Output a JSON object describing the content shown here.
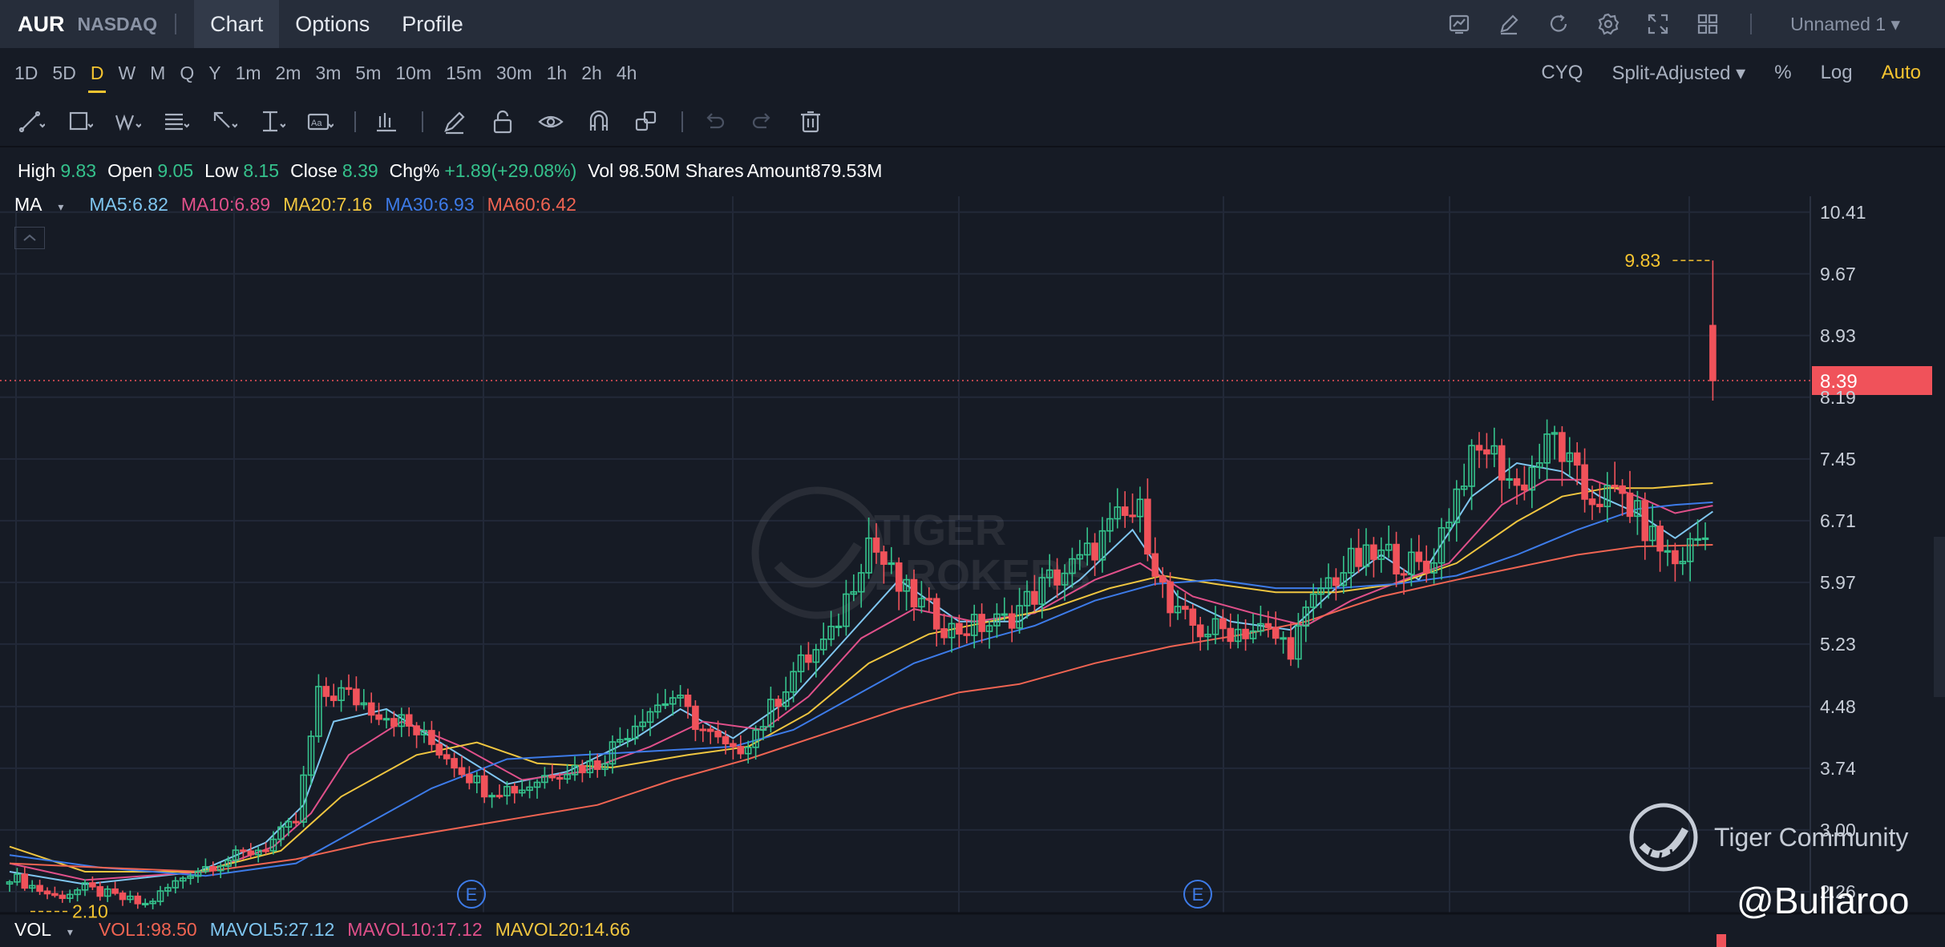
{
  "header": {
    "ticker": "AUR",
    "exchange": "NASDAQ",
    "tabs": [
      {
        "label": "Chart",
        "active": true
      },
      {
        "label": "Options"
      },
      {
        "label": "Profile"
      }
    ],
    "icons": [
      "chart-settings-icon",
      "pencil-icon",
      "refresh-icon",
      "gear-icon",
      "fullscreen-icon",
      "layout-grid-icon"
    ],
    "layout_name": "Unnamed 1"
  },
  "intervals": {
    "items": [
      "1D",
      "5D",
      "D",
      "W",
      "M",
      "Q",
      "Y",
      "1m",
      "2m",
      "3m",
      "5m",
      "10m",
      "15m",
      "30m",
      "1h",
      "2h",
      "4h"
    ],
    "active": "D"
  },
  "options": {
    "cyq": "CYQ",
    "adjust": "Split-Adjusted",
    "pct": "%",
    "log": "Log",
    "auto": "Auto"
  },
  "drawing_tools": [
    "trend-line-icon",
    "rectangle-icon",
    "wave-icon",
    "fib-icon",
    "arrow-icon",
    "measure-icon",
    "text-icon",
    "bar-pattern-icon",
    "brush-icon",
    "lock-icon",
    "eye-icon",
    "magnet-icon",
    "clone-icon",
    "undo-icon",
    "redo-icon",
    "trash-icon"
  ],
  "ohlc": {
    "high_label": "High",
    "high": "9.83",
    "open_label": "Open",
    "open": "9.05",
    "low_label": "Low",
    "low": "8.15",
    "close_label": "Close",
    "close": "8.39",
    "chg_label": "Chg%",
    "chg": "+1.89(+29.08%)",
    "vol": "Vol 98.50M Shares",
    "amount": "Amount879.53M"
  },
  "ma_legend": {
    "label": "MA",
    "items": [
      {
        "text": "MA5:6.82",
        "color": "#7fc6f0"
      },
      {
        "text": "MA10:6.89",
        "color": "#e0508a"
      },
      {
        "text": "MA20:7.16",
        "color": "#f0c640"
      },
      {
        "text": "MA30:6.93",
        "color": "#3d7be8"
      },
      {
        "text": "MA60:6.42",
        "color": "#f06452"
      }
    ]
  },
  "volume_legend": {
    "label": "VOL",
    "items": [
      {
        "text": "VOL1:98.50",
        "color": "#f06452"
      },
      {
        "text": "MAVOL5:27.12",
        "color": "#7fc6f0"
      },
      {
        "text": "MAVOL10:17.12",
        "color": "#e0508a"
      },
      {
        "text": "MAVOL20:14.66",
        "color": "#f0c640"
      }
    ]
  },
  "chart_data": {
    "type": "candlestick",
    "ylim": [
      2.0,
      10.6
    ],
    "yticks": [
      "10.41",
      "9.67",
      "8.93",
      "8.19",
      "7.45",
      "6.71",
      "5.97",
      "5.23",
      "4.48",
      "3.74",
      "3.00",
      "2.26"
    ],
    "last_price": "8.39",
    "high_marker": "9.83",
    "low_marker": "2.10",
    "earnings_markers": [
      "E",
      "E"
    ],
    "colors": {
      "up": "#35c28c",
      "down": "#f0525a"
    },
    "anchors": [
      [
        0,
        2.45
      ],
      [
        6,
        2.2
      ],
      [
        10,
        2.3
      ],
      [
        18,
        2.1
      ],
      [
        24,
        2.5
      ],
      [
        34,
        2.8
      ],
      [
        38,
        3.1
      ],
      [
        41,
        4.6
      ],
      [
        44,
        4.65
      ],
      [
        52,
        4.3
      ],
      [
        58,
        3.9
      ],
      [
        63,
        3.5
      ],
      [
        68,
        3.5
      ],
      [
        72,
        3.7
      ],
      [
        78,
        3.8
      ],
      [
        84,
        4.4
      ],
      [
        88,
        4.6
      ],
      [
        92,
        4.2
      ],
      [
        96,
        3.9
      ],
      [
        100,
        4.3
      ],
      [
        104,
        4.9
      ],
      [
        109,
        5.3
      ],
      [
        114,
        6.5
      ],
      [
        118,
        5.9
      ],
      [
        125,
        5.4
      ],
      [
        132,
        5.5
      ],
      [
        138,
        6.0
      ],
      [
        142,
        6.2
      ],
      [
        147,
        6.7
      ],
      [
        150,
        6.8
      ],
      [
        154,
        5.6
      ],
      [
        158,
        5.4
      ],
      [
        166,
        5.4
      ],
      [
        170,
        5.2
      ],
      [
        174,
        5.9
      ],
      [
        178,
        6.2
      ],
      [
        183,
        6.3
      ],
      [
        188,
        6.1
      ],
      [
        193,
        7.3
      ],
      [
        196,
        7.6
      ],
      [
        200,
        7.1
      ],
      [
        205,
        7.7
      ],
      [
        209,
        7.0
      ],
      [
        214,
        7.0
      ],
      [
        218,
        6.5
      ],
      [
        221,
        6.2
      ],
      [
        224,
        6.5
      ],
      [
        225,
        6.78
      ],
      [
        226,
        8.39
      ]
    ],
    "ma": {
      "ma5": [
        [
          0,
          2.5
        ],
        [
          10,
          2.35
        ],
        [
          25,
          2.5
        ],
        [
          34,
          2.85
        ],
        [
          39,
          3.3
        ],
        [
          43,
          4.3
        ],
        [
          50,
          4.45
        ],
        [
          58,
          4.0
        ],
        [
          66,
          3.55
        ],
        [
          74,
          3.7
        ],
        [
          83,
          4.1
        ],
        [
          89,
          4.45
        ],
        [
          96,
          4.1
        ],
        [
          104,
          4.6
        ],
        [
          110,
          5.2
        ],
        [
          118,
          6.0
        ],
        [
          126,
          5.5
        ],
        [
          134,
          5.5
        ],
        [
          142,
          6.0
        ],
        [
          149,
          6.6
        ],
        [
          155,
          5.8
        ],
        [
          162,
          5.5
        ],
        [
          170,
          5.4
        ],
        [
          176,
          5.9
        ],
        [
          182,
          6.3
        ],
        [
          187,
          6.0
        ],
        [
          194,
          7.0
        ],
        [
          200,
          7.4
        ],
        [
          206,
          7.3
        ],
        [
          211,
          7.0
        ],
        [
          216,
          6.8
        ],
        [
          221,
          6.5
        ],
        [
          226,
          6.82
        ]
      ],
      "ma10": [
        [
          0,
          2.6
        ],
        [
          10,
          2.4
        ],
        [
          26,
          2.5
        ],
        [
          35,
          2.8
        ],
        [
          40,
          3.2
        ],
        [
          45,
          3.9
        ],
        [
          52,
          4.3
        ],
        [
          60,
          4.0
        ],
        [
          68,
          3.6
        ],
        [
          76,
          3.7
        ],
        [
          85,
          4.0
        ],
        [
          92,
          4.3
        ],
        [
          100,
          4.2
        ],
        [
          106,
          4.6
        ],
        [
          113,
          5.3
        ],
        [
          120,
          5.65
        ],
        [
          128,
          5.5
        ],
        [
          136,
          5.6
        ],
        [
          144,
          6.0
        ],
        [
          150,
          6.2
        ],
        [
          157,
          5.8
        ],
        [
          165,
          5.6
        ],
        [
          172,
          5.45
        ],
        [
          178,
          5.75
        ],
        [
          185,
          6.0
        ],
        [
          191,
          6.2
        ],
        [
          198,
          6.9
        ],
        [
          204,
          7.2
        ],
        [
          210,
          7.2
        ],
        [
          216,
          7.0
        ],
        [
          221,
          6.8
        ],
        [
          226,
          6.89
        ]
      ],
      "ma20": [
        [
          0,
          2.8
        ],
        [
          10,
          2.5
        ],
        [
          25,
          2.5
        ],
        [
          36,
          2.75
        ],
        [
          44,
          3.4
        ],
        [
          54,
          3.9
        ],
        [
          62,
          4.05
        ],
        [
          70,
          3.8
        ],
        [
          80,
          3.75
        ],
        [
          90,
          3.9
        ],
        [
          98,
          4.0
        ],
        [
          106,
          4.4
        ],
        [
          114,
          5.0
        ],
        [
          122,
          5.35
        ],
        [
          130,
          5.5
        ],
        [
          138,
          5.65
        ],
        [
          146,
          5.9
        ],
        [
          153,
          6.05
        ],
        [
          160,
          5.95
        ],
        [
          168,
          5.85
        ],
        [
          176,
          5.85
        ],
        [
          184,
          5.95
        ],
        [
          192,
          6.2
        ],
        [
          200,
          6.7
        ],
        [
          206,
          7.0
        ],
        [
          212,
          7.1
        ],
        [
          218,
          7.1
        ],
        [
          226,
          7.16
        ]
      ],
      "ma30": [
        [
          0,
          2.7
        ],
        [
          12,
          2.55
        ],
        [
          26,
          2.45
        ],
        [
          38,
          2.6
        ],
        [
          46,
          3.0
        ],
        [
          56,
          3.5
        ],
        [
          66,
          3.85
        ],
        [
          76,
          3.9
        ],
        [
          86,
          3.95
        ],
        [
          96,
          4.0
        ],
        [
          104,
          4.2
        ],
        [
          112,
          4.6
        ],
        [
          120,
          5.0
        ],
        [
          128,
          5.25
        ],
        [
          136,
          5.45
        ],
        [
          144,
          5.75
        ],
        [
          152,
          5.95
        ],
        [
          160,
          6.0
        ],
        [
          168,
          5.9
        ],
        [
          176,
          5.9
        ],
        [
          184,
          5.95
        ],
        [
          192,
          6.05
        ],
        [
          200,
          6.3
        ],
        [
          208,
          6.6
        ],
        [
          216,
          6.85
        ],
        [
          221,
          6.9
        ],
        [
          226,
          6.93
        ]
      ],
      "ma60": [
        [
          0,
          2.6
        ],
        [
          12,
          2.55
        ],
        [
          26,
          2.5
        ],
        [
          38,
          2.65
        ],
        [
          48,
          2.85
        ],
        [
          58,
          3.0
        ],
        [
          68,
          3.15
        ],
        [
          78,
          3.3
        ],
        [
          88,
          3.6
        ],
        [
          98,
          3.85
        ],
        [
          108,
          4.15
        ],
        [
          118,
          4.45
        ],
        [
          126,
          4.65
        ],
        [
          134,
          4.75
        ],
        [
          144,
          5.0
        ],
        [
          154,
          5.2
        ],
        [
          164,
          5.35
        ],
        [
          172,
          5.5
        ],
        [
          182,
          5.8
        ],
        [
          192,
          6.0
        ],
        [
          200,
          6.15
        ],
        [
          208,
          6.3
        ],
        [
          216,
          6.4
        ],
        [
          226,
          6.42
        ]
      ]
    }
  },
  "watermark": {
    "text": "Tiger Community",
    "handle": "@Bullaroo"
  }
}
